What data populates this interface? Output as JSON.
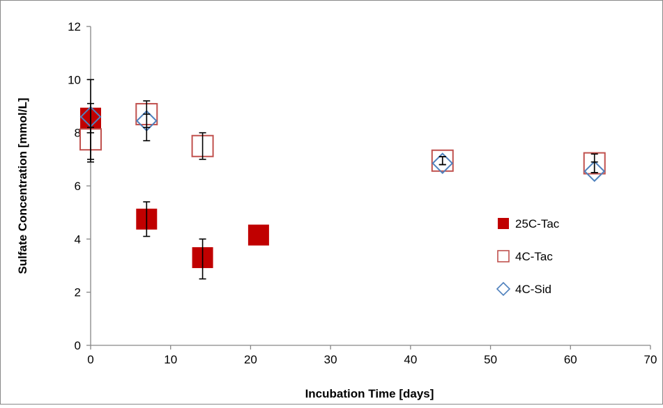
{
  "chart_data": {
    "type": "scatter",
    "title": "",
    "xlabel": "Incubation Time [days]",
    "ylabel": "Sulfate Concentration [mmol/L]",
    "xlim": [
      0,
      70
    ],
    "ylim": [
      0,
      12
    ],
    "xticks": [
      0,
      10,
      20,
      30,
      40,
      50,
      60,
      70
    ],
    "yticks": [
      0,
      2,
      4,
      6,
      8,
      10,
      12
    ],
    "grid": false,
    "legend_position": "right",
    "series": [
      {
        "name": "25C-Tac",
        "marker": "filled-square",
        "color": "#C00000",
        "points": [
          {
            "x": 0,
            "y": 8.55,
            "err_low": 6.9,
            "err_high": 10.0
          },
          {
            "x": 7,
            "y": 4.75,
            "err_low": 4.1,
            "err_high": 5.4
          },
          {
            "x": 14,
            "y": 3.3,
            "err_low": 2.5,
            "err_high": 4.0
          },
          {
            "x": 21,
            "y": 4.15,
            "err_low": null,
            "err_high": null
          }
        ]
      },
      {
        "name": "4C-Tac",
        "marker": "open-square",
        "color": "#C0504D",
        "points": [
          {
            "x": 0,
            "y": 7.75,
            "err_low": 7.0,
            "err_high": 8.2
          },
          {
            "x": 7,
            "y": 8.7,
            "err_low": 8.2,
            "err_high": 9.2
          },
          {
            "x": 14,
            "y": 7.5,
            "err_low": 7.0,
            "err_high": 8.0
          },
          {
            "x": 44,
            "y": 6.95,
            "err_low": 6.8,
            "err_high": 7.1
          },
          {
            "x": 63,
            "y": 6.85,
            "err_low": 6.5,
            "err_high": 7.2
          }
        ]
      },
      {
        "name": "4C-Sid",
        "marker": "open-diamond",
        "color": "#4F81BD",
        "points": [
          {
            "x": 0,
            "y": 8.6,
            "err_low": 8.0,
            "err_high": 9.1
          },
          {
            "x": 7,
            "y": 8.45,
            "err_low": 7.7,
            "err_high": 8.7
          },
          {
            "x": 44,
            "y": 6.85,
            "err_low": 6.8,
            "err_high": 7.1
          },
          {
            "x": 63,
            "y": 6.55,
            "err_low": 6.5,
            "err_high": 6.9
          }
        ]
      }
    ]
  }
}
